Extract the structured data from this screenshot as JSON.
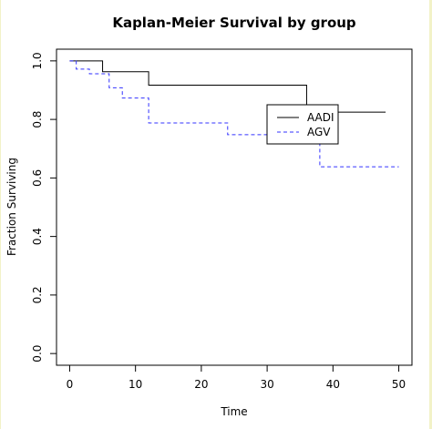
{
  "chart_data": {
    "type": "line",
    "step": true,
    "title": "Kaplan-Meier Survival by group",
    "xlabel": "Time",
    "ylabel": "Fraction Surviving",
    "xlim": [
      -2,
      52
    ],
    "ylim": [
      -0.04,
      1.04
    ],
    "xticks": [
      0,
      10,
      20,
      30,
      40,
      50
    ],
    "yticks": [
      0.0,
      0.2,
      0.4,
      0.6,
      0.8,
      1.0
    ],
    "ytick_labels": [
      "0.0",
      "0.2",
      "0.4",
      "0.6",
      "0.8",
      "1.0"
    ],
    "grid": false,
    "legend_position": "top-right",
    "series": [
      {
        "name": "AADI",
        "color": "#000000",
        "dash": "solid",
        "x": [
          0,
          5,
          12,
          36,
          48
        ],
        "y": [
          1.0,
          0.963,
          0.917,
          0.825,
          0.825
        ]
      },
      {
        "name": "AGV",
        "color": "#3333ff",
        "dash": "dashed",
        "x": [
          0,
          1,
          3,
          6,
          8,
          12,
          24,
          38,
          50
        ],
        "y": [
          1.0,
          0.972,
          0.956,
          0.908,
          0.873,
          0.788,
          0.748,
          0.638,
          0.638
        ]
      }
    ]
  }
}
